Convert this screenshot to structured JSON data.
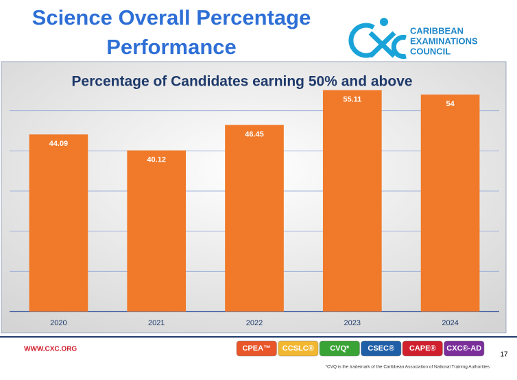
{
  "header": {
    "title_lines": [
      "Science Overall Percentage",
      "Performance"
    ],
    "logo_lines": [
      "CARIBBEAN",
      "EXAMINATIONS",
      "COUNCIL"
    ]
  },
  "chart_data": {
    "type": "bar",
    "title": "Percentage of Candidates earning 50% and above",
    "categories": [
      "2020",
      "2021",
      "2022",
      "2023",
      "2024"
    ],
    "values": [
      44.09,
      40.12,
      46.45,
      55.11,
      54
    ],
    "color": "#f07a2a",
    "ylim": [
      0,
      60
    ],
    "yticks": [
      0,
      10,
      20,
      30,
      40,
      50
    ],
    "grid": true
  },
  "footer": {
    "website": "WWW.CXC.ORG",
    "badges": [
      {
        "label": "CPEA™",
        "color": "#e8562a"
      },
      {
        "label": "CCSLC®",
        "color": "#f2b731"
      },
      {
        "label": "CVQ*",
        "color": "#3aa336"
      },
      {
        "label": "CSEC®",
        "color": "#1f5fa8"
      },
      {
        "label": "CAPE®",
        "color": "#d0202e"
      },
      {
        "label": "CXC®-AD",
        "color": "#7b2f9b"
      }
    ],
    "page_number": "17",
    "note": "*CVQ is the trademark of the Caribbean Association of National Training Authorities"
  }
}
